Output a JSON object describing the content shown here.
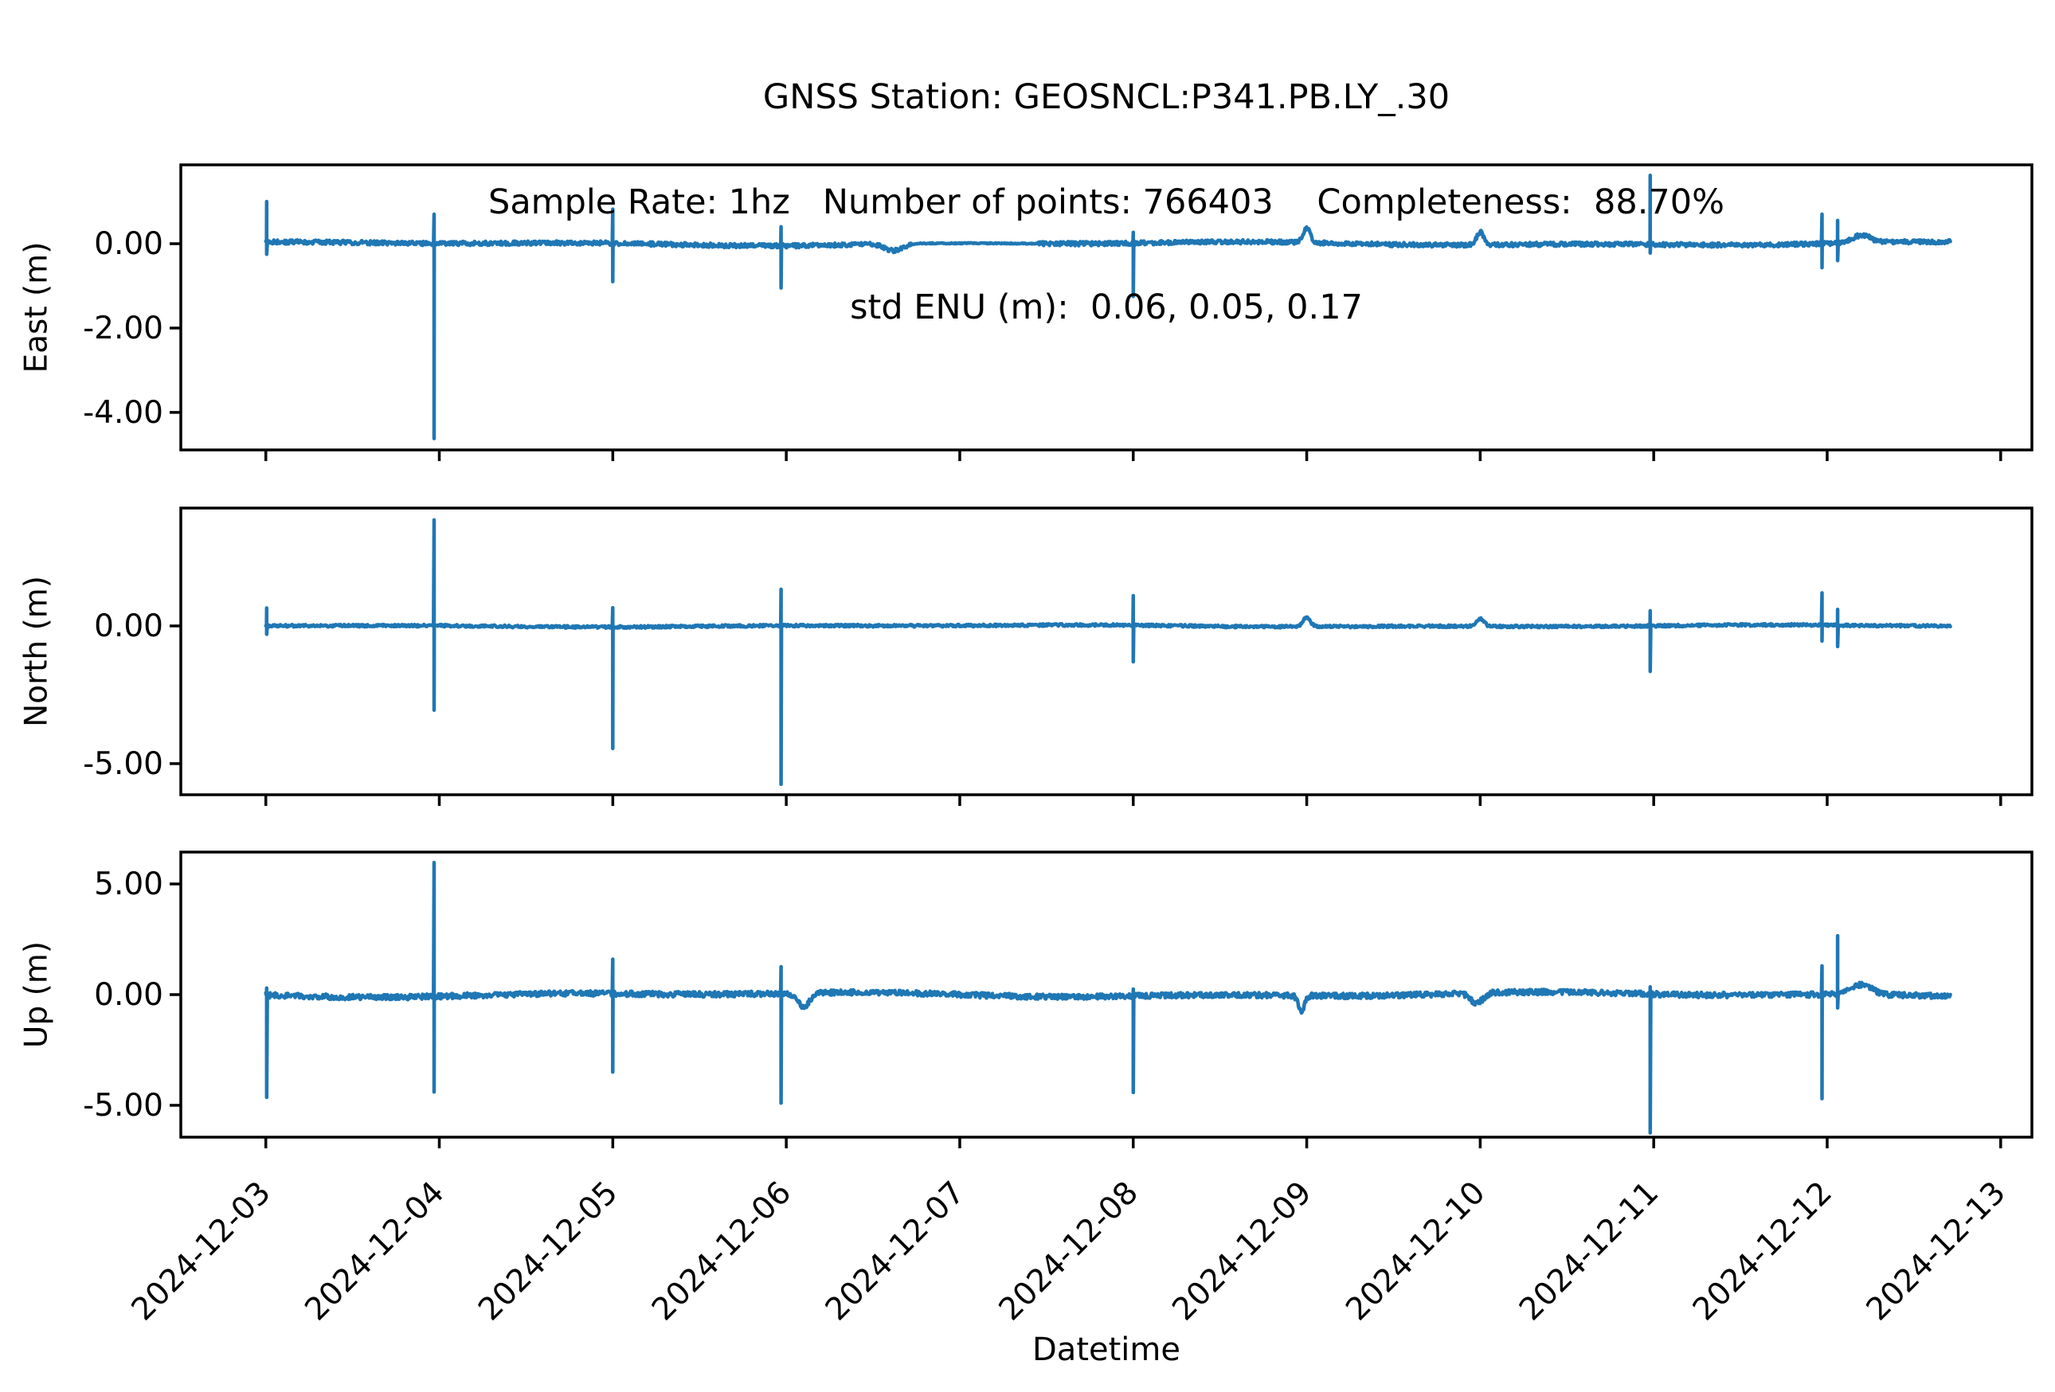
{
  "title": {
    "line1": "GNSS Station: GEOSNCL:P341.PB.LY_.30",
    "line2": "Sample Rate: 1hz   Number of points: 766403    Completeness:  88.70%",
    "line3": "std ENU (m):  0.06, 0.05, 0.17"
  },
  "stats": {
    "station": "GEOSNCL:P341.PB.LY_.30",
    "sample_rate": "1hz",
    "number_of_points": "766403",
    "completeness": "88.70%",
    "std_enu_m": "0.06, 0.05, 0.17"
  },
  "chart_data": {
    "type": "line",
    "series_color": "#1f77b4",
    "xlabel": "Datetime",
    "x_unit": "days since 2024-12-03 00:00",
    "xlim": [
      -0.49,
      10.18
    ],
    "data_start_day": 0.0,
    "data_end_day": 9.71,
    "grid": "off",
    "legend": "none",
    "x_ticks": [
      {
        "day": 0,
        "label": "2024-12-03"
      },
      {
        "day": 1,
        "label": "2024-12-04"
      },
      {
        "day": 2,
        "label": "2024-12-05"
      },
      {
        "day": 3,
        "label": "2024-12-06"
      },
      {
        "day": 4,
        "label": "2024-12-07"
      },
      {
        "day": 5,
        "label": "2024-12-08"
      },
      {
        "day": 6,
        "label": "2024-12-09"
      },
      {
        "day": 7,
        "label": "2024-12-10"
      },
      {
        "day": 8,
        "label": "2024-12-11"
      },
      {
        "day": 9,
        "label": "2024-12-12"
      },
      {
        "day": 10,
        "label": "2024-12-13"
      }
    ],
    "panels": [
      {
        "name": "East",
        "ylabel": "East (m)",
        "ylim": [
          -4.89,
          1.87
        ],
        "baseline": 0.0,
        "noise_band": 0.05,
        "yticks": [
          {
            "v": 0,
            "label": "0.00"
          },
          {
            "v": -2,
            "label": "-2.00"
          },
          {
            "v": -4,
            "label": "-4.00"
          }
        ],
        "spikes": [
          {
            "day": 0.005,
            "up": 1.0,
            "down": -0.25
          },
          {
            "day": 0.97,
            "up": 0.7,
            "down": -4.62
          },
          {
            "day": 2.0,
            "up": 0.82,
            "down": -0.9
          },
          {
            "day": 2.97,
            "up": 0.4,
            "down": -1.05
          },
          {
            "day": 5.0,
            "up": 0.27,
            "down": -1.25
          },
          {
            "day": 7.98,
            "up": 1.62,
            "down": -0.22
          },
          {
            "day": 8.97,
            "up": 0.7,
            "down": -0.57
          },
          {
            "day": 9.06,
            "up": 0.55,
            "down": -0.4
          }
        ],
        "bumps": [
          {
            "day": 3.62,
            "v": -0.16,
            "w": 0.07
          },
          {
            "day": 6.0,
            "v": 0.33,
            "w": 0.03
          },
          {
            "day": 7.0,
            "v": 0.3,
            "w": 0.03
          },
          {
            "day": 9.2,
            "v": 0.18,
            "w": 0.07
          }
        ],
        "smooth_intervals": [
          [
            3.72,
            4.45
          ]
        ]
      },
      {
        "name": "North",
        "ylabel": "North (m)",
        "ylim": [
          -6.13,
          4.28
        ],
        "baseline": 0.0,
        "noise_band": 0.045,
        "yticks": [
          {
            "v": 0,
            "label": "0.00"
          },
          {
            "v": -5,
            "label": "-5.00"
          }
        ],
        "spikes": [
          {
            "day": 0.005,
            "up": 0.65,
            "down": -0.3
          },
          {
            "day": 0.97,
            "up": 3.85,
            "down": -3.06
          },
          {
            "day": 2.0,
            "up": 0.66,
            "down": -4.45
          },
          {
            "day": 2.97,
            "up": 1.33,
            "down": -5.75
          },
          {
            "day": 5.0,
            "up": 1.1,
            "down": -1.3
          },
          {
            "day": 7.98,
            "up": 0.55,
            "down": -1.65
          },
          {
            "day": 8.97,
            "up": 1.2,
            "down": -0.55
          },
          {
            "day": 9.06,
            "up": 0.6,
            "down": -0.75
          }
        ],
        "bumps": [
          {
            "day": 6.0,
            "v": 0.33,
            "w": 0.03
          },
          {
            "day": 7.0,
            "v": 0.28,
            "w": 0.03
          }
        ],
        "smooth_intervals": []
      },
      {
        "name": "Up",
        "ylabel": "Up (m)",
        "ylim": [
          -6.44,
          6.44
        ],
        "baseline": 0.0,
        "noise_band": 0.12,
        "yticks": [
          {
            "v": 5,
            "label": "5.00"
          },
          {
            "v": 0,
            "label": "0.00"
          },
          {
            "v": -5,
            "label": "-5.00"
          }
        ],
        "spikes": [
          {
            "day": 0.005,
            "up": 0.3,
            "down": -4.64
          },
          {
            "day": 0.97,
            "up": 5.97,
            "down": -4.4
          },
          {
            "day": 2.0,
            "up": 1.6,
            "down": -3.5
          },
          {
            "day": 2.97,
            "up": 1.26,
            "down": -4.9
          },
          {
            "day": 5.0,
            "up": 0.25,
            "down": -4.42
          },
          {
            "day": 7.98,
            "up": 0.35,
            "down": -6.25
          },
          {
            "day": 8.97,
            "up": 1.3,
            "down": -4.7
          },
          {
            "day": 9.06,
            "up": 2.66,
            "down": -0.6
          }
        ],
        "bumps": [
          {
            "day": 3.1,
            "v": -0.6,
            "w": 0.05
          },
          {
            "day": 5.97,
            "v": -0.7,
            "w": 0.025
          },
          {
            "day": 6.98,
            "v": -0.45,
            "w": 0.05
          },
          {
            "day": 9.2,
            "v": 0.45,
            "w": 0.08
          }
        ],
        "smooth_intervals": []
      }
    ]
  }
}
